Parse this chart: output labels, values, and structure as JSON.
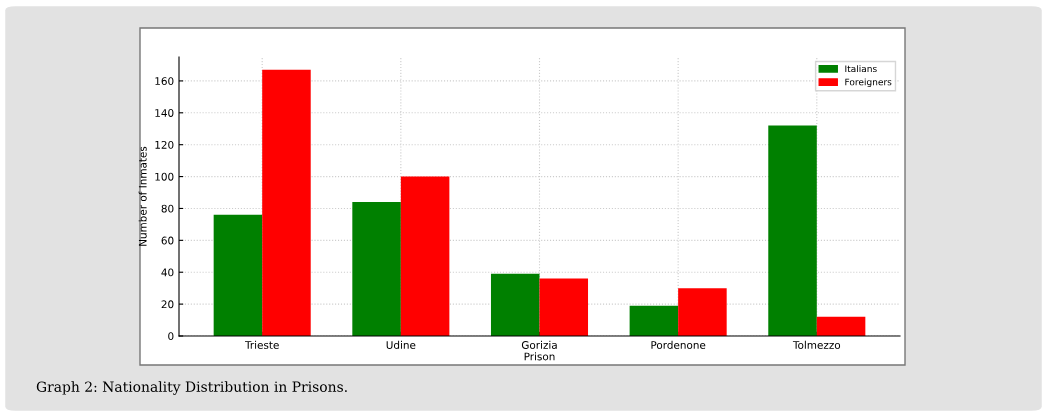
{
  "chart_data": {
    "type": "bar",
    "categories": [
      "Trieste",
      "Udine",
      "Gorizia",
      "Pordenone",
      "Tolmezzo"
    ],
    "series": [
      {
        "name": "Italians",
        "color": "#008000",
        "values": [
          76,
          84,
          39,
          19,
          132
        ]
      },
      {
        "name": "Foreigners",
        "color": "#ff0000",
        "values": [
          167,
          100,
          36,
          30,
          12
        ]
      }
    ],
    "xlabel": "Prison",
    "ylabel": "Number of Inmates",
    "ylim": [
      0,
      175
    ],
    "yticks": [
      0,
      20,
      40,
      60,
      80,
      100,
      120,
      140,
      160
    ],
    "grid": true,
    "legend": "top right",
    "annotations": [
      "Graph 2: Nationality Distribution in Prisons."
    ]
  }
}
